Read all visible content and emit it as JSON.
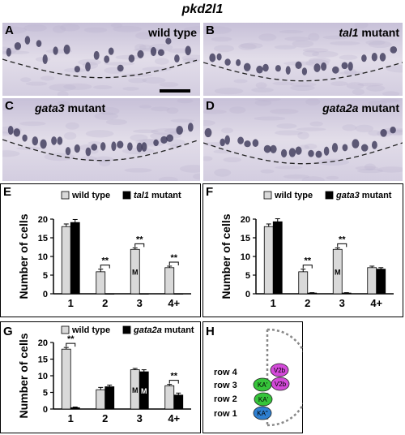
{
  "figure": {
    "title": "pkd2l1",
    "photos": [
      {
        "label": "A",
        "genotype_italic": "",
        "genotype_rest": "wild type",
        "has_scalebar": true,
        "seed": 11
      },
      {
        "label": "B",
        "genotype_italic": "tal1",
        "genotype_rest": " mutant",
        "has_scalebar": false,
        "seed": 23
      },
      {
        "label": "C",
        "genotype_italic": "gata3",
        "genotype_rest": " mutant",
        "has_scalebar": false,
        "seed": 37
      },
      {
        "label": "D",
        "genotype_italic": "gata2a",
        "genotype_rest": " mutant",
        "has_scalebar": false,
        "seed": 53
      }
    ],
    "diagram": {
      "label": "H",
      "rows": [
        "row 4",
        "row 3",
        "row 2",
        "row 1"
      ],
      "cells": [
        {
          "text": "V2b",
          "color": "#d34ad9"
        },
        {
          "text": "KA'",
          "color": "#36c43a"
        },
        {
          "text": "V2b",
          "color": "#d34ad9"
        },
        {
          "text": "KA'",
          "color": "#36c43a"
        },
        {
          "text": "KA\"",
          "color": "#2e7fd0"
        }
      ]
    }
  },
  "chart_data": [
    {
      "panel": "E",
      "type": "bar",
      "categories": [
        "1",
        "2",
        "3",
        "4+"
      ],
      "series": [
        {
          "name": "wild type",
          "values": [
            18.0,
            5.9,
            11.9,
            7.0
          ],
          "err": [
            0.7,
            0.7,
            0.4,
            0.4
          ],
          "color": "#d9d9d9"
        },
        {
          "name": "mutant",
          "name_italic": "tal1",
          "values": [
            19.1,
            0,
            0,
            0
          ],
          "err": [
            0.8,
            0,
            0,
            0
          ],
          "color": "#000000"
        }
      ],
      "ylabel": "Number of cells",
      "ylim": [
        0,
        20
      ],
      "yticks": [
        0,
        5,
        10,
        15,
        20
      ],
      "sig": [
        {
          "cat": 1,
          "text": "**"
        },
        {
          "cat": 2,
          "text": "**"
        },
        {
          "cat": 3,
          "text": "**"
        }
      ],
      "mlabels": [
        {
          "cat": 2,
          "series": 0,
          "text": "M"
        }
      ]
    },
    {
      "panel": "F",
      "type": "bar",
      "categories": [
        "1",
        "2",
        "3",
        "4+"
      ],
      "series": [
        {
          "name": "wild type",
          "values": [
            18.0,
            5.9,
            11.9,
            7.0
          ],
          "err": [
            0.7,
            0.7,
            0.4,
            0.4
          ],
          "color": "#d9d9d9"
        },
        {
          "name": "mutant",
          "name_italic": "gata3",
          "values": [
            19.3,
            0.2,
            0.2,
            6.6
          ],
          "err": [
            0.8,
            0.1,
            0.1,
            0.4
          ],
          "color": "#000000"
        }
      ],
      "ylabel": "Number of cells",
      "ylim": [
        0,
        20
      ],
      "yticks": [
        0,
        5,
        10,
        15,
        20
      ],
      "sig": [
        {
          "cat": 1,
          "text": "**"
        },
        {
          "cat": 2,
          "text": "**"
        }
      ],
      "mlabels": [
        {
          "cat": 2,
          "series": 0,
          "text": "M"
        }
      ]
    },
    {
      "panel": "G",
      "type": "bar",
      "categories": [
        "1",
        "2",
        "3",
        "4+"
      ],
      "series": [
        {
          "name": "wild type",
          "values": [
            18.0,
            5.8,
            11.8,
            7.0
          ],
          "err": [
            0.5,
            0.7,
            0.4,
            0.4
          ],
          "color": "#d9d9d9"
        },
        {
          "name": "mutant",
          "name_italic": "gata2a",
          "values": [
            0.4,
            6.7,
            11.2,
            4.2
          ],
          "err": [
            0.2,
            0.5,
            0.6,
            0.6
          ],
          "color": "#000000"
        }
      ],
      "ylabel": "Number of cells",
      "ylim": [
        0,
        20
      ],
      "yticks": [
        0,
        5,
        10,
        15,
        20
      ],
      "sig": [
        {
          "cat": 0,
          "text": "**"
        },
        {
          "cat": 3,
          "text": "**"
        }
      ],
      "mlabels": [
        {
          "cat": 2,
          "series": 0,
          "text": "M"
        },
        {
          "cat": 2,
          "series": 1,
          "text": "M"
        }
      ]
    }
  ]
}
